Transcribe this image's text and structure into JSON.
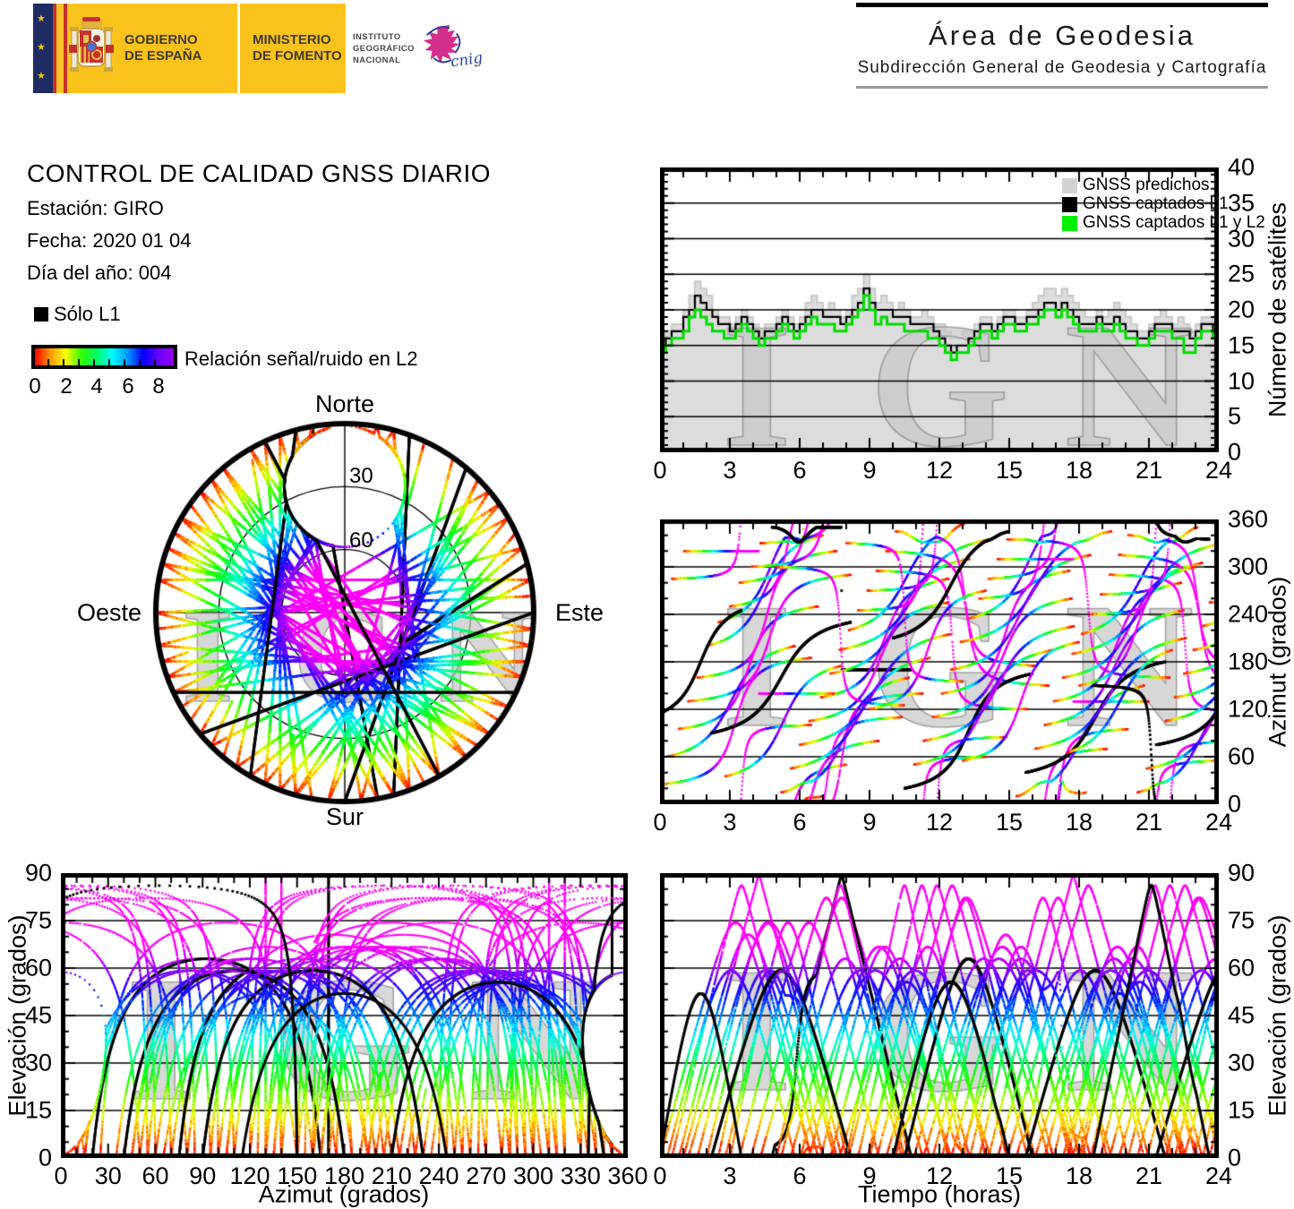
{
  "header": {
    "gobierno": {
      "line1": "GOBIERNO",
      "line2": "DE ESPAÑA"
    },
    "ministerio": {
      "line1": "MINISTERIO",
      "line2": "DE FOMENTO"
    },
    "ign": {
      "line1": "INSTITUTO",
      "line2": "GEOGRÁFICO",
      "line3": "NACIONAL"
    },
    "cnig_label": "cnig",
    "area": {
      "title": "Área de Geodesia",
      "subtitle": "Subdirección General de Geodesia y Cartografía"
    }
  },
  "report": {
    "title": "CONTROL DE CALIDAD GNSS DIARIO",
    "lines": [
      {
        "label": "Estación:",
        "value": "GIRO"
      },
      {
        "label": "Fecha:",
        "value": "2020 01 04"
      },
      {
        "label": "Día del año:",
        "value": "004"
      }
    ]
  },
  "legend": {
    "solo_l1": "Sólo L1",
    "colorbar": {
      "label": "Relación señal/ruido en L2",
      "tick_labels": [
        0,
        2,
        4,
        6,
        8
      ],
      "min": 0,
      "max": 9,
      "colors": [
        "#ff0000",
        "#ff9900",
        "#ffff00",
        "#33ff00",
        "#00ff66",
        "#00ffff",
        "#0099ff",
        "#0000ff",
        "#6600ff",
        "#9900ee"
      ]
    }
  },
  "watermark": "IGN",
  "skyplot": {
    "labels": {
      "north": "Norte",
      "south": "Sur",
      "east": "Este",
      "west": "Oeste"
    },
    "ring_labels": [
      30,
      60
    ]
  },
  "colors": {
    "predicted_fill": "#dcdcdc",
    "predicted_edge": "#c9c9c9",
    "captured_l1": "#000000",
    "captured_l1l2": "#00dd00",
    "watermark_fill": "#c7c7c7",
    "watermark_edge": "#8a8a8a"
  },
  "tracks": {
    "description": "GNSS satellite passes as sky chords: [azimuth_rise_deg, azimuth_set_deg, start_hour, duration_hours, solo_L1_flag]. Point colour encodes L2 signal/noise ratio (0=red ... 9=violet/magenta, correlated with elevation); solo_L1_flag=1 drawn black.",
    "passes": [
      [
        25,
        185,
        0.0,
        6.5,
        0
      ],
      [
        60,
        200,
        0.3,
        5.5,
        0
      ],
      [
        95,
        250,
        0.8,
        6.0,
        0
      ],
      [
        130,
        290,
        1.2,
        7.0,
        0
      ],
      [
        160,
        320,
        1.6,
        6.0,
        0
      ],
      [
        200,
        340,
        2.0,
        5.0,
        0
      ],
      [
        230,
        10,
        2.5,
        4.5,
        0
      ],
      [
        250,
        50,
        3.0,
        5.0,
        0
      ],
      [
        280,
        80,
        3.4,
        6.0,
        0
      ],
      [
        300,
        110,
        3.9,
        6.5,
        0
      ],
      [
        330,
        140,
        4.3,
        7.0,
        0
      ],
      [
        350,
        170,
        4.8,
        6.0,
        1
      ],
      [
        15,
        160,
        5.2,
        5.5,
        0
      ],
      [
        45,
        185,
        5.6,
        6.0,
        0
      ],
      [
        75,
        215,
        6.0,
        6.5,
        0
      ],
      [
        105,
        255,
        6.4,
        6.0,
        0
      ],
      [
        135,
        285,
        6.9,
        5.5,
        0
      ],
      [
        165,
        310,
        7.3,
        6.0,
        0
      ],
      [
        195,
        335,
        7.7,
        6.5,
        0
      ],
      [
        220,
        355,
        8.1,
        5.0,
        0
      ],
      [
        245,
        60,
        8.5,
        5.5,
        0
      ],
      [
        270,
        85,
        8.9,
        6.0,
        0
      ],
      [
        295,
        120,
        9.3,
        6.5,
        0
      ],
      [
        320,
        150,
        9.7,
        7.0,
        0
      ],
      [
        345,
        175,
        10.1,
        6.0,
        0
      ],
      [
        20,
        165,
        10.5,
        5.5,
        1
      ],
      [
        50,
        195,
        10.9,
        6.0,
        0
      ],
      [
        80,
        225,
        11.3,
        6.5,
        0
      ],
      [
        110,
        260,
        11.7,
        6.0,
        0
      ],
      [
        140,
        295,
        12.1,
        5.5,
        0
      ],
      [
        170,
        315,
        12.5,
        6.0,
        0
      ],
      [
        205,
        345,
        12.9,
        6.5,
        0
      ],
      [
        235,
        15,
        13.3,
        5.0,
        0
      ],
      [
        260,
        70,
        13.7,
        5.5,
        0
      ],
      [
        285,
        95,
        14.1,
        6.0,
        0
      ],
      [
        310,
        130,
        14.5,
        6.5,
        0
      ],
      [
        335,
        160,
        14.9,
        7.0,
        0
      ],
      [
        10,
        150,
        15.3,
        5.5,
        0
      ],
      [
        40,
        180,
        15.7,
        6.0,
        1
      ],
      [
        70,
        210,
        16.1,
        6.5,
        0
      ],
      [
        100,
        245,
        16.5,
        6.0,
        0
      ],
      [
        130,
        280,
        16.9,
        5.5,
        0
      ],
      [
        160,
        305,
        17.3,
        6.0,
        0
      ],
      [
        190,
        330,
        17.7,
        6.5,
        0
      ],
      [
        215,
        350,
        18.1,
        5.0,
        0
      ],
      [
        240,
        55,
        18.5,
        5.5,
        0
      ],
      [
        265,
        80,
        18.9,
        6.0,
        0
      ],
      [
        290,
        115,
        19.3,
        6.5,
        0
      ],
      [
        315,
        145,
        19.7,
        7.0,
        0
      ],
      [
        340,
        170,
        20.1,
        6.0,
        0
      ],
      [
        15,
        155,
        20.5,
        5.5,
        0
      ],
      [
        45,
        190,
        20.9,
        6.0,
        0
      ],
      [
        75,
        220,
        21.3,
        6.5,
        1
      ],
      [
        105,
        250,
        21.7,
        6.0,
        0
      ],
      [
        135,
        290,
        22.1,
        5.5,
        0
      ],
      [
        165,
        315,
        22.5,
        6.0,
        0
      ],
      [
        195,
        340,
        22.9,
        6.5,
        0
      ],
      [
        225,
        5,
        23.3,
        5.0,
        0
      ],
      [
        255,
        65,
        23.6,
        5.5,
        0
      ],
      [
        285,
        100,
        0.5,
        6.0,
        0
      ],
      [
        320,
        140,
        1.0,
        6.5,
        0
      ],
      [
        90,
        230,
        2.2,
        6.0,
        1
      ],
      [
        120,
        270,
        9.0,
        5.0,
        0
      ],
      [
        150,
        300,
        18.0,
        5.0,
        0
      ],
      [
        35,
        175,
        2.8,
        5.0,
        0
      ],
      [
        55,
        205,
        13.0,
        5.0,
        0
      ],
      [
        300,
        125,
        5.0,
        5.5,
        0
      ],
      [
        210,
        345,
        10.0,
        5.0,
        1
      ],
      [
        65,
        195,
        17.5,
        4.5,
        0
      ],
      [
        330,
        155,
        8.0,
        5.0,
        0
      ],
      [
        150,
        335,
        18.6,
        5.0,
        1
      ],
      [
        115,
        245,
        0.0,
        3.5,
        1
      ]
    ]
  },
  "chart_data": [
    {
      "id": "satellites_count",
      "type": "area",
      "title": "",
      "xlabel": "",
      "ylabel": "Número de satélites",
      "xlim": [
        0,
        24
      ],
      "ylim": [
        0,
        40
      ],
      "x_ticks": [
        0,
        3,
        6,
        9,
        12,
        15,
        18,
        21,
        24
      ],
      "y_ticks": [
        0,
        5,
        10,
        15,
        20,
        25,
        30,
        35,
        40
      ],
      "grid_y": [
        5,
        10,
        15,
        20,
        25,
        30,
        35
      ],
      "legend_position": "top-right",
      "sample_step_hours": 0.25,
      "series": [
        {
          "name": "GNSS predichos",
          "color": "#dcdcdc",
          "values": [
            16,
            17,
            18,
            18,
            20,
            22,
            24,
            23,
            22,
            20,
            19,
            19,
            18,
            19,
            20,
            19,
            18,
            17,
            18,
            18,
            19,
            20,
            19,
            18,
            19,
            21,
            22,
            21,
            20,
            21,
            20,
            19,
            20,
            22,
            23,
            25,
            23,
            21,
            22,
            21,
            20,
            21,
            20,
            19,
            19,
            20,
            19,
            18,
            18,
            17,
            16,
            16,
            17,
            17,
            18,
            19,
            19,
            18,
            19,
            20,
            20,
            19,
            19,
            20,
            21,
            22,
            23,
            23,
            22,
            23,
            22,
            21,
            20,
            19,
            19,
            20,
            19,
            20,
            21,
            20,
            19,
            18,
            17,
            17,
            18,
            19,
            20,
            19,
            18,
            19,
            18,
            17,
            18,
            19,
            19,
            18
          ]
        },
        {
          "name": "GNSS captados L1",
          "color": "#000000",
          "values": [
            15,
            16,
            17,
            17,
            19,
            20,
            22,
            21,
            20,
            19,
            18,
            18,
            17,
            18,
            19,
            18,
            17,
            16,
            17,
            17,
            18,
            19,
            18,
            17,
            18,
            19,
            20,
            20,
            19,
            19,
            19,
            18,
            19,
            20,
            21,
            23,
            21,
            20,
            20,
            20,
            19,
            19,
            19,
            18,
            18,
            18,
            18,
            17,
            16,
            15,
            14,
            15,
            15,
            16,
            17,
            18,
            18,
            17,
            18,
            19,
            19,
            18,
            18,
            19,
            19,
            20,
            21,
            21,
            20,
            21,
            20,
            19,
            18,
            18,
            18,
            19,
            18,
            18,
            19,
            18,
            17,
            17,
            16,
            16,
            17,
            18,
            18,
            18,
            17,
            17,
            17,
            16,
            17,
            18,
            18,
            17
          ]
        },
        {
          "name": "GNSS captados L1 y L2",
          "color": "#00dd00",
          "values": [
            14,
            15,
            16,
            16,
            17,
            19,
            20,
            19,
            18,
            17,
            17,
            16,
            16,
            17,
            18,
            17,
            16,
            15,
            16,
            16,
            17,
            18,
            17,
            16,
            17,
            18,
            19,
            18,
            18,
            18,
            17,
            17,
            18,
            19,
            20,
            22,
            20,
            18,
            19,
            18,
            18,
            18,
            17,
            17,
            17,
            17,
            16,
            16,
            15,
            14,
            13,
            14,
            14,
            15,
            16,
            17,
            17,
            16,
            17,
            18,
            18,
            17,
            17,
            18,
            18,
            19,
            20,
            20,
            19,
            20,
            19,
            18,
            17,
            17,
            17,
            18,
            17,
            17,
            18,
            17,
            16,
            16,
            15,
            15,
            16,
            17,
            17,
            17,
            16,
            16,
            14,
            14,
            16,
            17,
            17,
            16
          ]
        }
      ]
    },
    {
      "id": "skyplot",
      "type": "scatter-polar",
      "labels": [
        "Norte",
        "Este",
        "Sur",
        "Oeste"
      ],
      "elevation_rings": [
        30,
        60
      ],
      "series_source": "tracks"
    },
    {
      "id": "azimuth_vs_time",
      "type": "scatter",
      "xlabel": "",
      "ylabel": "Azimut (grados)",
      "xlim": [
        0,
        24
      ],
      "ylim": [
        0,
        360
      ],
      "x_ticks": [
        0,
        3,
        6,
        9,
        12,
        15,
        18,
        21,
        24
      ],
      "y_ticks": [
        0,
        60,
        120,
        180,
        240,
        300,
        360
      ],
      "grid_y": [
        60,
        120,
        180,
        240,
        300
      ],
      "series_source": "tracks"
    },
    {
      "id": "elevation_vs_azimuth",
      "type": "scatter",
      "xlabel": "Azimut (grados)",
      "ylabel": "Elevación (grados)",
      "xlim": [
        0,
        360
      ],
      "ylim": [
        0,
        90
      ],
      "x_ticks": [
        0,
        30,
        60,
        90,
        120,
        150,
        180,
        210,
        240,
        270,
        300,
        330,
        360
      ],
      "y_ticks": [
        0,
        15,
        30,
        45,
        60,
        75,
        90
      ],
      "grid_y": [
        15,
        30,
        45,
        60,
        75
      ],
      "series_source": "tracks"
    },
    {
      "id": "elevation_vs_time",
      "type": "scatter",
      "xlabel": "Tiempo (horas)",
      "ylabel": "Elevación (grados)",
      "xlim": [
        0,
        24
      ],
      "ylim": [
        0,
        90
      ],
      "x_ticks": [
        0,
        3,
        6,
        9,
        12,
        15,
        18,
        21,
        24
      ],
      "y_ticks": [
        0,
        15,
        30,
        45,
        60,
        75,
        90
      ],
      "grid_y": [
        15,
        30,
        45,
        60,
        75
      ],
      "series_source": "tracks"
    }
  ]
}
